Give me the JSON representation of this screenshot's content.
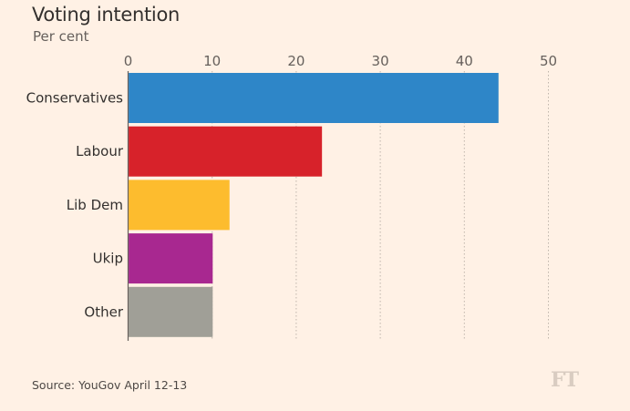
{
  "chart_data": {
    "type": "bar",
    "orientation": "horizontal",
    "title": "Voting intention",
    "subtitle": "Per cent",
    "categories": [
      "Conservatives",
      "Labour",
      "Lib Dem",
      "Ukip",
      "Other"
    ],
    "values": [
      44,
      23,
      12,
      10,
      10
    ],
    "colors": [
      "#2e86c8",
      "#d7222a",
      "#fdbc2e",
      "#a82890",
      "#a09f97"
    ],
    "xlim": [
      0,
      50
    ],
    "xticks": [
      0,
      10,
      20,
      30,
      40,
      50
    ],
    "grid": "vertical dotted",
    "legend": "none"
  },
  "source": "Source: YouGov April 12-13",
  "logo": "FT"
}
